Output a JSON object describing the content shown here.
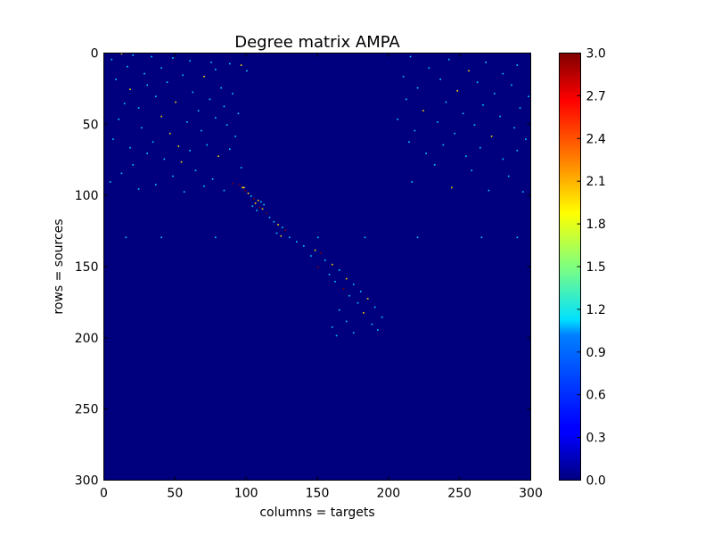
{
  "chart_data": {
    "type": "heatmap",
    "title": "Degree matrix AMPA",
    "xlabel": "columns = targets",
    "ylabel": "rows = sources",
    "rows": 300,
    "cols": 300,
    "xlim": [
      0,
      300
    ],
    "ylim": [
      300,
      0
    ],
    "xticks": [
      0,
      50,
      100,
      150,
      200,
      250,
      300
    ],
    "yticks": [
      0,
      50,
      100,
      150,
      200,
      250,
      300
    ],
    "grid": false,
    "colormap": "jet",
    "colorbar": {
      "range": [
        0.0,
        3.0
      ],
      "ticks": [
        "0.0",
        "0.3",
        "0.6",
        "0.9",
        "1.2",
        "1.5",
        "1.8",
        "2.1",
        "2.4",
        "2.7",
        "3.0"
      ]
    },
    "background_value": 0,
    "nonzero_cells": [
      {
        "row": 0,
        "col": 12,
        "value": 2
      },
      {
        "row": 1,
        "col": 20,
        "value": 1
      },
      {
        "row": 2,
        "col": 33,
        "value": 1
      },
      {
        "row": 3,
        "col": 48,
        "value": 1
      },
      {
        "row": 4,
        "col": 5,
        "value": 1
      },
      {
        "row": 5,
        "col": 60,
        "value": 1
      },
      {
        "row": 6,
        "col": 75,
        "value": 1
      },
      {
        "row": 7,
        "col": 88,
        "value": 1
      },
      {
        "row": 8,
        "col": 96,
        "value": 2
      },
      {
        "row": 9,
        "col": 16,
        "value": 1
      },
      {
        "row": 10,
        "col": 40,
        "value": 1
      },
      {
        "row": 11,
        "col": 78,
        "value": 1
      },
      {
        "row": 12,
        "col": 100,
        "value": 1
      },
      {
        "row": 14,
        "col": 28,
        "value": 1
      },
      {
        "row": 15,
        "col": 55,
        "value": 1
      },
      {
        "row": 16,
        "col": 70,
        "value": 2
      },
      {
        "row": 18,
        "col": 8,
        "value": 1
      },
      {
        "row": 20,
        "col": 44,
        "value": 1
      },
      {
        "row": 22,
        "col": 30,
        "value": 1
      },
      {
        "row": 24,
        "col": 82,
        "value": 1
      },
      {
        "row": 25,
        "col": 18,
        "value": 2
      },
      {
        "row": 27,
        "col": 62,
        "value": 1
      },
      {
        "row": 28,
        "col": 90,
        "value": 1
      },
      {
        "row": 30,
        "col": 36,
        "value": 1
      },
      {
        "row": 32,
        "col": 74,
        "value": 1
      },
      {
        "row": 34,
        "col": 50,
        "value": 2
      },
      {
        "row": 35,
        "col": 14,
        "value": 1
      },
      {
        "row": 37,
        "col": 84,
        "value": 1
      },
      {
        "row": 38,
        "col": 24,
        "value": 1
      },
      {
        "row": 40,
        "col": 66,
        "value": 1
      },
      {
        "row": 42,
        "col": 94,
        "value": 1
      },
      {
        "row": 44,
        "col": 40,
        "value": 2
      },
      {
        "row": 45,
        "col": 78,
        "value": 1
      },
      {
        "row": 46,
        "col": 10,
        "value": 1
      },
      {
        "row": 48,
        "col": 58,
        "value": 1
      },
      {
        "row": 50,
        "col": 86,
        "value": 1
      },
      {
        "row": 52,
        "col": 26,
        "value": 1
      },
      {
        "row": 54,
        "col": 68,
        "value": 1
      },
      {
        "row": 56,
        "col": 46,
        "value": 2
      },
      {
        "row": 58,
        "col": 92,
        "value": 1
      },
      {
        "row": 60,
        "col": 6,
        "value": 1
      },
      {
        "row": 62,
        "col": 34,
        "value": 1
      },
      {
        "row": 64,
        "col": 72,
        "value": 1
      },
      {
        "row": 65,
        "col": 52,
        "value": 2
      },
      {
        "row": 66,
        "col": 18,
        "value": 1
      },
      {
        "row": 67,
        "col": 88,
        "value": 1
      },
      {
        "row": 68,
        "col": 60,
        "value": 1
      },
      {
        "row": 70,
        "col": 30,
        "value": 1
      },
      {
        "row": 72,
        "col": 80,
        "value": 2
      },
      {
        "row": 74,
        "col": 42,
        "value": 1
      },
      {
        "row": 76,
        "col": 54,
        "value": 2
      },
      {
        "row": 78,
        "col": 20,
        "value": 1
      },
      {
        "row": 80,
        "col": 96,
        "value": 1
      },
      {
        "row": 82,
        "col": 64,
        "value": 1
      },
      {
        "row": 84,
        "col": 12,
        "value": 1
      },
      {
        "row": 86,
        "col": 48,
        "value": 1
      },
      {
        "row": 88,
        "col": 76,
        "value": 1
      },
      {
        "row": 90,
        "col": 4,
        "value": 1
      },
      {
        "row": 91,
        "col": 90,
        "value": 3
      },
      {
        "row": 92,
        "col": 36,
        "value": 1
      },
      {
        "row": 93,
        "col": 70,
        "value": 1
      },
      {
        "row": 94,
        "col": 98,
        "value": 2
      },
      {
        "row": 95,
        "col": 24,
        "value": 1
      },
      {
        "row": 96,
        "col": 84,
        "value": 1
      },
      {
        "row": 97,
        "col": 56,
        "value": 1
      },
      {
        "row": 2,
        "col": 215,
        "value": 1
      },
      {
        "row": 4,
        "col": 242,
        "value": 1
      },
      {
        "row": 6,
        "col": 268,
        "value": 1
      },
      {
        "row": 8,
        "col": 290,
        "value": 1
      },
      {
        "row": 10,
        "col": 228,
        "value": 1
      },
      {
        "row": 12,
        "col": 256,
        "value": 2
      },
      {
        "row": 14,
        "col": 280,
        "value": 1
      },
      {
        "row": 16,
        "col": 210,
        "value": 1
      },
      {
        "row": 18,
        "col": 236,
        "value": 1
      },
      {
        "row": 20,
        "col": 262,
        "value": 1
      },
      {
        "row": 22,
        "col": 286,
        "value": 1
      },
      {
        "row": 24,
        "col": 220,
        "value": 1
      },
      {
        "row": 26,
        "col": 248,
        "value": 2
      },
      {
        "row": 28,
        "col": 274,
        "value": 1
      },
      {
        "row": 30,
        "col": 298,
        "value": 1
      },
      {
        "row": 32,
        "col": 212,
        "value": 1
      },
      {
        "row": 34,
        "col": 240,
        "value": 1
      },
      {
        "row": 36,
        "col": 266,
        "value": 1
      },
      {
        "row": 38,
        "col": 292,
        "value": 1
      },
      {
        "row": 40,
        "col": 224,
        "value": 2
      },
      {
        "row": 42,
        "col": 252,
        "value": 1
      },
      {
        "row": 44,
        "col": 278,
        "value": 1
      },
      {
        "row": 46,
        "col": 206,
        "value": 1
      },
      {
        "row": 48,
        "col": 234,
        "value": 1
      },
      {
        "row": 50,
        "col": 260,
        "value": 1
      },
      {
        "row": 52,
        "col": 288,
        "value": 1
      },
      {
        "row": 54,
        "col": 218,
        "value": 1
      },
      {
        "row": 56,
        "col": 246,
        "value": 1
      },
      {
        "row": 58,
        "col": 272,
        "value": 2
      },
      {
        "row": 60,
        "col": 296,
        "value": 1
      },
      {
        "row": 62,
        "col": 214,
        "value": 1
      },
      {
        "row": 64,
        "col": 238,
        "value": 1
      },
      {
        "row": 66,
        "col": 264,
        "value": 1
      },
      {
        "row": 68,
        "col": 290,
        "value": 1
      },
      {
        "row": 70,
        "col": 226,
        "value": 1
      },
      {
        "row": 72,
        "col": 254,
        "value": 1
      },
      {
        "row": 74,
        "col": 280,
        "value": 1
      },
      {
        "row": 78,
        "col": 232,
        "value": 1
      },
      {
        "row": 82,
        "col": 258,
        "value": 1
      },
      {
        "row": 86,
        "col": 284,
        "value": 1
      },
      {
        "row": 90,
        "col": 216,
        "value": 1
      },
      {
        "row": 94,
        "col": 244,
        "value": 2
      },
      {
        "row": 96,
        "col": 270,
        "value": 1
      },
      {
        "row": 97,
        "col": 294,
        "value": 1
      },
      {
        "row": 92,
        "col": 95,
        "value": 3
      },
      {
        "row": 94,
        "col": 97,
        "value": 2
      },
      {
        "row": 96,
        "col": 99,
        "value": 3
      },
      {
        "row": 98,
        "col": 101,
        "value": 2
      },
      {
        "row": 100,
        "col": 103,
        "value": 1
      },
      {
        "row": 102,
        "col": 105,
        "value": 3
      },
      {
        "row": 103,
        "col": 108,
        "value": 2
      },
      {
        "row": 104,
        "col": 110,
        "value": 1
      },
      {
        "row": 105,
        "col": 106,
        "value": 2
      },
      {
        "row": 106,
        "col": 112,
        "value": 1
      },
      {
        "row": 107,
        "col": 104,
        "value": 1
      },
      {
        "row": 108,
        "col": 109,
        "value": 3
      },
      {
        "row": 109,
        "col": 111,
        "value": 2
      },
      {
        "row": 110,
        "col": 107,
        "value": 1
      },
      {
        "row": 112,
        "col": 114,
        "value": 3
      },
      {
        "row": 115,
        "col": 116,
        "value": 1
      },
      {
        "row": 118,
        "col": 119,
        "value": 1
      },
      {
        "row": 120,
        "col": 122,
        "value": 2
      },
      {
        "row": 122,
        "col": 125,
        "value": 1
      },
      {
        "row": 124,
        "col": 127,
        "value": 3
      },
      {
        "row": 126,
        "col": 121,
        "value": 1
      },
      {
        "row": 128,
        "col": 124,
        "value": 2
      },
      {
        "row": 129,
        "col": 130,
        "value": 1
      },
      {
        "row": 129,
        "col": 15,
        "value": 1
      },
      {
        "row": 129,
        "col": 40,
        "value": 1
      },
      {
        "row": 129,
        "col": 78,
        "value": 1
      },
      {
        "row": 129,
        "col": 150,
        "value": 1
      },
      {
        "row": 129,
        "col": 183,
        "value": 1
      },
      {
        "row": 129,
        "col": 220,
        "value": 1
      },
      {
        "row": 129,
        "col": 265,
        "value": 1
      },
      {
        "row": 129,
        "col": 290,
        "value": 1
      },
      {
        "row": 132,
        "col": 135,
        "value": 1
      },
      {
        "row": 135,
        "col": 140,
        "value": 1
      },
      {
        "row": 138,
        "col": 148,
        "value": 2
      },
      {
        "row": 140,
        "col": 152,
        "value": 3
      },
      {
        "row": 142,
        "col": 145,
        "value": 1
      },
      {
        "row": 145,
        "col": 155,
        "value": 1
      },
      {
        "row": 148,
        "col": 160,
        "value": 2
      },
      {
        "row": 150,
        "col": 150,
        "value": 3
      },
      {
        "row": 152,
        "col": 165,
        "value": 1
      },
      {
        "row": 155,
        "col": 158,
        "value": 1
      },
      {
        "row": 158,
        "col": 170,
        "value": 2
      },
      {
        "row": 160,
        "col": 162,
        "value": 1
      },
      {
        "row": 162,
        "col": 175,
        "value": 1
      },
      {
        "row": 165,
        "col": 168,
        "value": 3
      },
      {
        "row": 167,
        "col": 180,
        "value": 1
      },
      {
        "row": 170,
        "col": 172,
        "value": 1
      },
      {
        "row": 172,
        "col": 185,
        "value": 2
      },
      {
        "row": 175,
        "col": 178,
        "value": 1
      },
      {
        "row": 178,
        "col": 190,
        "value": 1
      },
      {
        "row": 180,
        "col": 165,
        "value": 1
      },
      {
        "row": 182,
        "col": 182,
        "value": 2
      },
      {
        "row": 185,
        "col": 195,
        "value": 1
      },
      {
        "row": 188,
        "col": 170,
        "value": 1
      },
      {
        "row": 190,
        "col": 188,
        "value": 1
      },
      {
        "row": 192,
        "col": 160,
        "value": 1
      },
      {
        "row": 194,
        "col": 192,
        "value": 1
      },
      {
        "row": 196,
        "col": 175,
        "value": 1
      },
      {
        "row": 198,
        "col": 163,
        "value": 1
      }
    ]
  }
}
